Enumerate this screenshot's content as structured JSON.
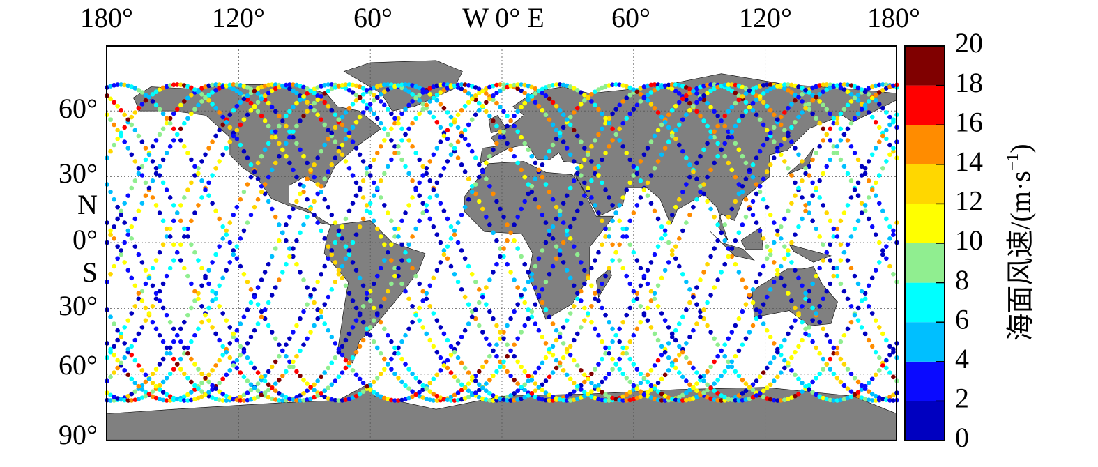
{
  "map": {
    "lon_labels": [
      "180°",
      "120°",
      "60°",
      "W 0° E",
      "60°",
      "120°",
      "180°"
    ],
    "lat_labels": [
      "60°",
      "30°",
      "N",
      "0°",
      "S",
      "30°",
      "60°",
      "90°"
    ]
  },
  "colorbar": {
    "ticks": [
      0,
      2,
      4,
      6,
      8,
      10,
      12,
      14,
      16,
      18,
      20
    ],
    "colors": [
      "#0000c0",
      "#0a0aff",
      "#00bfff",
      "#00ffff",
      "#90ee90",
      "#ffff00",
      "#ffd700",
      "#ff8c00",
      "#ff0000",
      "#800000"
    ],
    "label": {
      "main": "海面风速/(m·s",
      "sup": "−1",
      "end": ")"
    }
  }
}
